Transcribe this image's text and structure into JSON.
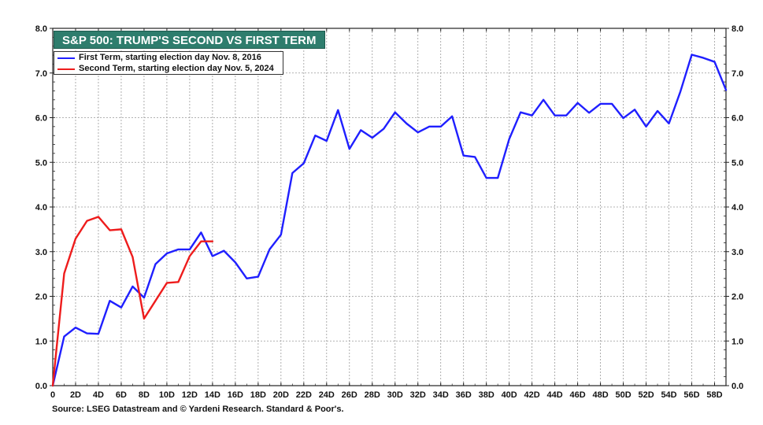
{
  "colors": {
    "first_term": "#1f1fff",
    "second_term": "#ee1c1c",
    "title_bg": "#2e7d6d",
    "title_text": "#ffffff",
    "grid": "#9a9a9a"
  },
  "source": "Source: LSEG Datastream and © Yardeni Research. Standard & Poor's.",
  "chart_data": {
    "type": "line",
    "title": "S&P 500: TRUMP'S SECOND VS FIRST TERM",
    "xlabel": "",
    "ylabel": "",
    "xlim": [
      0,
      59
    ],
    "ylim": [
      0,
      8
    ],
    "x_ticks": [
      0,
      2,
      4,
      6,
      8,
      10,
      12,
      14,
      16,
      18,
      20,
      22,
      24,
      26,
      28,
      30,
      32,
      34,
      36,
      38,
      40,
      42,
      44,
      46,
      48,
      50,
      52,
      54,
      56,
      58
    ],
    "x_tick_labels": [
      "0",
      "2D",
      "4D",
      "6D",
      "8D",
      "10D",
      "12D",
      "14D",
      "16D",
      "18D",
      "20D",
      "22D",
      "24D",
      "26D",
      "28D",
      "30D",
      "32D",
      "34D",
      "36D",
      "38D",
      "40D",
      "42D",
      "44D",
      "46D",
      "48D",
      "50D",
      "52D",
      "54D",
      "56D",
      "58D"
    ],
    "y_ticks": [
      0,
      1,
      2,
      3,
      4,
      5,
      6,
      7,
      8
    ],
    "y_tick_labels": [
      "0.0",
      "1.0",
      "2.0",
      "3.0",
      "4.0",
      "5.0",
      "6.0",
      "7.0",
      "8.0"
    ],
    "grid": true,
    "legend_position": "top-left",
    "series": [
      {
        "name": "First Term, starting election day Nov. 8, 2016",
        "x": [
          0,
          1,
          2,
          3,
          4,
          5,
          6,
          7,
          8,
          9,
          10,
          11,
          12,
          13,
          14,
          15,
          16,
          17,
          18,
          19,
          20,
          21,
          22,
          23,
          24,
          25,
          26,
          27,
          28,
          29,
          30,
          31,
          32,
          33,
          34,
          35,
          36,
          37,
          38,
          39,
          40,
          41,
          42,
          43,
          44,
          45,
          46,
          47,
          48,
          49,
          50,
          51,
          52,
          53,
          54,
          55,
          56,
          57,
          58,
          59
        ],
        "values": [
          0.0,
          1.1,
          1.3,
          1.17,
          1.16,
          1.9,
          1.75,
          2.22,
          1.97,
          2.72,
          2.96,
          3.05,
          3.05,
          3.43,
          2.9,
          3.02,
          2.76,
          2.4,
          2.44,
          3.05,
          3.38,
          4.76,
          4.98,
          5.6,
          5.48,
          6.17,
          5.3,
          5.72,
          5.55,
          5.75,
          6.12,
          5.87,
          5.67,
          5.8,
          5.8,
          6.03,
          5.15,
          5.12,
          4.65,
          4.65,
          5.52,
          6.12,
          6.05,
          6.4,
          6.05,
          6.05,
          6.33,
          6.11,
          6.31,
          6.31,
          5.99,
          6.18,
          5.8,
          6.15,
          5.87,
          6.58,
          7.41,
          7.34,
          7.25,
          6.62
        ]
      },
      {
        "name": "Second Term, starting election day Nov. 5, 2024",
        "x": [
          0,
          1,
          2,
          3,
          4,
          5,
          6,
          7,
          8,
          9,
          10,
          11,
          12,
          13,
          14
        ],
        "values": [
          0.0,
          2.51,
          3.29,
          3.69,
          3.78,
          3.48,
          3.5,
          2.88,
          1.5,
          1.9,
          2.3,
          2.32,
          2.9,
          3.23,
          3.23
        ]
      }
    ]
  }
}
